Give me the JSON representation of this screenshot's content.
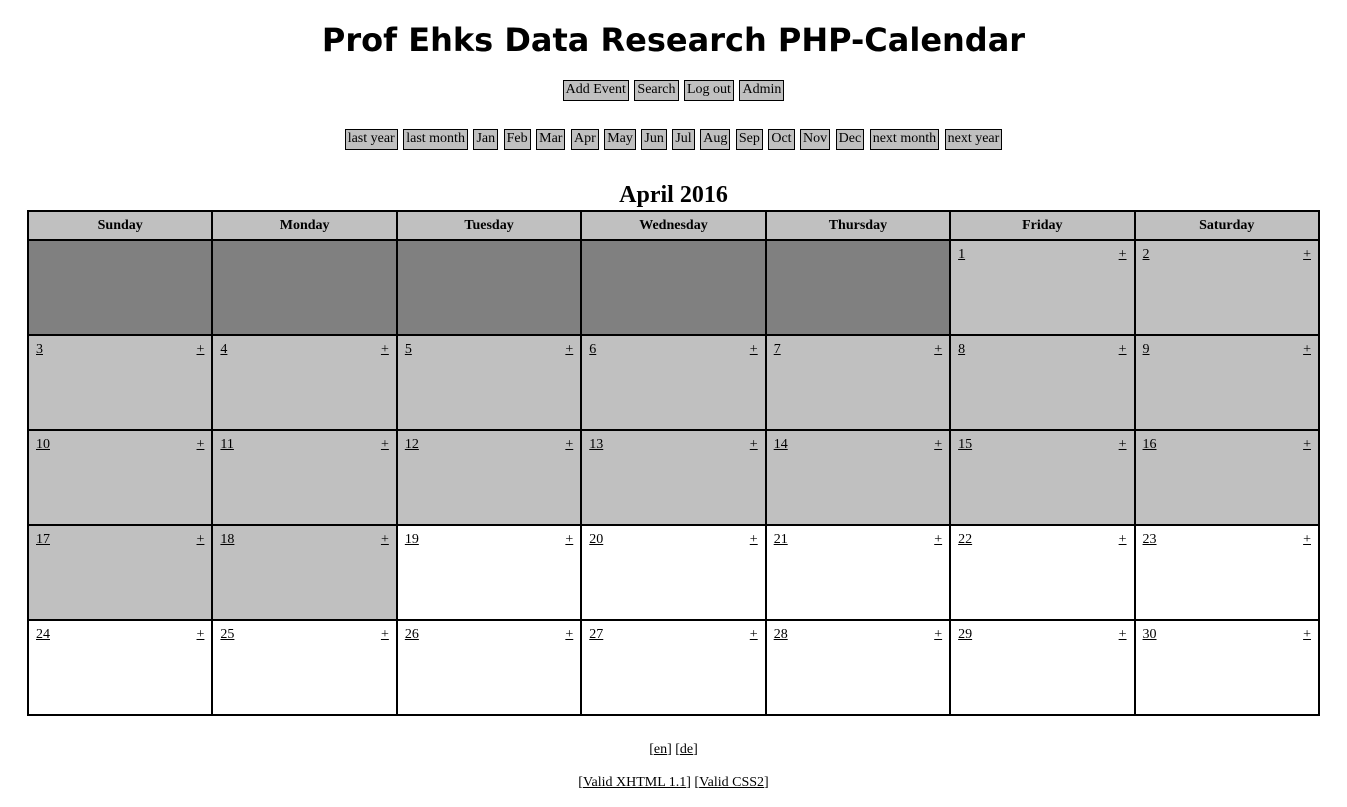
{
  "header": {
    "title": "Prof Ehks Data Research PHP-Calendar"
  },
  "top_nav": [
    "Add Event",
    "Search",
    "Log out",
    "Admin"
  ],
  "month_nav": [
    "last year",
    "last month",
    "Jan",
    "Feb",
    "Mar",
    "Apr",
    "May",
    "Jun",
    "Jul",
    "Aug",
    "Sep",
    "Oct",
    "Nov",
    "Dec",
    "next month",
    "next year"
  ],
  "calendar": {
    "title": "April 2016",
    "weekdays": [
      "Sunday",
      "Monday",
      "Tuesday",
      "Wednesday",
      "Thursday",
      "Friday",
      "Saturday"
    ],
    "add_label": "+",
    "weeks": [
      [
        {
          "day": "",
          "state": "blank"
        },
        {
          "day": "",
          "state": "blank"
        },
        {
          "day": "",
          "state": "blank"
        },
        {
          "day": "",
          "state": "blank"
        },
        {
          "day": "",
          "state": "blank"
        },
        {
          "day": "1",
          "state": "past"
        },
        {
          "day": "2",
          "state": "past"
        }
      ],
      [
        {
          "day": "3",
          "state": "past"
        },
        {
          "day": "4",
          "state": "past"
        },
        {
          "day": "5",
          "state": "past"
        },
        {
          "day": "6",
          "state": "past"
        },
        {
          "day": "7",
          "state": "past"
        },
        {
          "day": "8",
          "state": "past"
        },
        {
          "day": "9",
          "state": "past"
        }
      ],
      [
        {
          "day": "10",
          "state": "past"
        },
        {
          "day": "11",
          "state": "past"
        },
        {
          "day": "12",
          "state": "past"
        },
        {
          "day": "13",
          "state": "past"
        },
        {
          "day": "14",
          "state": "past"
        },
        {
          "day": "15",
          "state": "past"
        },
        {
          "day": "16",
          "state": "past"
        }
      ],
      [
        {
          "day": "17",
          "state": "past"
        },
        {
          "day": "18",
          "state": "past"
        },
        {
          "day": "19",
          "state": "future"
        },
        {
          "day": "20",
          "state": "future"
        },
        {
          "day": "21",
          "state": "future"
        },
        {
          "day": "22",
          "state": "future"
        },
        {
          "day": "23",
          "state": "future"
        }
      ],
      [
        {
          "day": "24",
          "state": "future"
        },
        {
          "day": "25",
          "state": "future"
        },
        {
          "day": "26",
          "state": "future"
        },
        {
          "day": "27",
          "state": "future"
        },
        {
          "day": "28",
          "state": "future"
        },
        {
          "day": "29",
          "state": "future"
        },
        {
          "day": "30",
          "state": "future"
        }
      ]
    ]
  },
  "footer": {
    "languages": [
      "en",
      "de"
    ],
    "validators": [
      "Valid XHTML 1.1",
      "Valid CSS2"
    ]
  },
  "colors": {
    "button_bg": "#c0c0c0",
    "blank_cell": "#808080",
    "past_cell": "#c0c0c0",
    "future_cell": "#ffffff"
  }
}
